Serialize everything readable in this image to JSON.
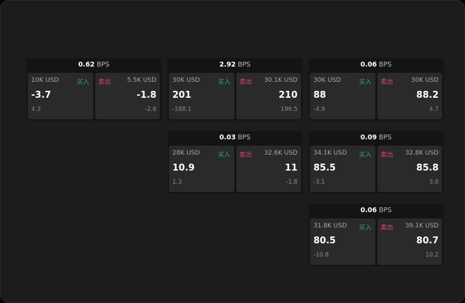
{
  "unit": "BPS",
  "buy_label": "买入",
  "sell_label": "卖出",
  "colors": {
    "buy": "#2fae5b",
    "sell": "#e0466e",
    "background": "#1c1c1c",
    "cell": "#2a2a2a"
  },
  "tiles": [
    {
      "spread": "0.62",
      "buy": {
        "size": "10K USD",
        "price": "-3.7",
        "change": "4.3"
      },
      "sell": {
        "size": "5.5K USD",
        "price": "-1.8",
        "change": "-2.6"
      }
    },
    {
      "spread": "2.92",
      "buy": {
        "size": "30K USD",
        "price": "201",
        "change": "-188.1"
      },
      "sell": {
        "size": "30.1K USD",
        "price": "210",
        "change": "196.5"
      }
    },
    {
      "spread": "0.06",
      "buy": {
        "size": "30K USD",
        "price": "88",
        "change": "-4.9"
      },
      "sell": {
        "size": "30K USD",
        "price": "88.2",
        "change": "4.7"
      }
    },
    {
      "spread": "0.03",
      "buy": {
        "size": "28K USD",
        "price": "10.9",
        "change": "1.3"
      },
      "sell": {
        "size": "32.6K USD",
        "price": "11",
        "change": "-1.8"
      }
    },
    {
      "spread": "0.09",
      "buy": {
        "size": "34.1K USD",
        "price": "85.5",
        "change": "-3.1"
      },
      "sell": {
        "size": "32.8K USD",
        "price": "85.8",
        "change": "3.0"
      }
    },
    {
      "spread": "0.06",
      "buy": {
        "size": "31.8K USD",
        "price": "80.5",
        "change": "-10.8"
      },
      "sell": {
        "size": "39.1K USD",
        "price": "80.7",
        "change": "10.2"
      }
    }
  ]
}
